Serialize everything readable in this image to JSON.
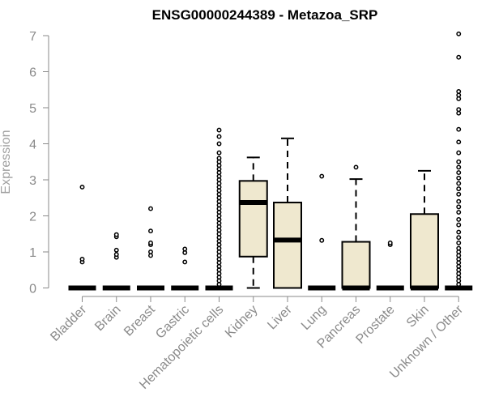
{
  "chart_data": {
    "type": "boxplot",
    "title": "ENSG00000244389 - Metazoa_SRP",
    "xlabel": "",
    "ylabel": "Expression",
    "ylim": [
      0,
      7
    ],
    "yticks": [
      0,
      1,
      2,
      3,
      4,
      5,
      6,
      7
    ],
    "box_color": "#efe8cf",
    "categories": [
      "Bladder",
      "Brain",
      "Breast",
      "Gastric",
      "Hematopoietic cells",
      "Kidney",
      "Liver",
      "Lung",
      "Pancreas",
      "Prostate",
      "Skin",
      "Unknown / Other"
    ],
    "boxes": [
      {
        "category": "Bladder",
        "min": 0,
        "q1": 0,
        "median": 0,
        "q3": 0,
        "max": 0,
        "outliers": [
          0.72,
          0.8,
          2.8
        ]
      },
      {
        "category": "Brain",
        "min": 0,
        "q1": 0,
        "median": 0,
        "q3": 0,
        "max": 0,
        "outliers": [
          0.85,
          0.93,
          1.05,
          1.42,
          1.48
        ]
      },
      {
        "category": "Breast",
        "min": 0,
        "q1": 0,
        "median": 0,
        "q3": 0,
        "max": 0,
        "outliers": [
          0.9,
          1.0,
          1.2,
          1.25,
          1.58,
          2.2
        ]
      },
      {
        "category": "Gastric",
        "min": 0,
        "q1": 0,
        "median": 0,
        "q3": 0,
        "max": 0,
        "outliers": [
          0.72,
          0.98,
          1.08
        ]
      },
      {
        "category": "Hematopoietic cells",
        "min": 0,
        "q1": 0,
        "median": 0,
        "q3": 0,
        "max": 0,
        "outliers": [
          0.1,
          0.2,
          0.3,
          0.4,
          0.5,
          0.6,
          0.7,
          0.8,
          0.9,
          1.0,
          1.1,
          1.2,
          1.3,
          1.4,
          1.5,
          1.6,
          1.7,
          1.8,
          1.9,
          2.0,
          2.1,
          2.2,
          2.3,
          2.4,
          2.5,
          2.6,
          2.7,
          2.8,
          2.9,
          3.0,
          3.1,
          3.2,
          3.3,
          3.4,
          3.5,
          3.6,
          3.75,
          4.0,
          4.2,
          4.38
        ]
      },
      {
        "category": "Kidney",
        "min": 0,
        "q1": 0.87,
        "median": 2.37,
        "q3": 2.97,
        "max": 3.62,
        "outliers": []
      },
      {
        "category": "Liver",
        "min": 0,
        "q1": 0,
        "median": 1.33,
        "q3": 2.37,
        "max": 4.15,
        "outliers": []
      },
      {
        "category": "Lung",
        "min": 0,
        "q1": 0,
        "median": 0,
        "q3": 0,
        "max": 0,
        "outliers": [
          1.32,
          3.1
        ]
      },
      {
        "category": "Pancreas",
        "min": 0,
        "q1": 0,
        "median": 0,
        "q3": 1.28,
        "max": 3.02,
        "outliers": [
          3.35
        ]
      },
      {
        "category": "Prostate",
        "min": 0,
        "q1": 0,
        "median": 0,
        "q3": 0,
        "max": 0,
        "outliers": [
          1.2,
          1.25
        ]
      },
      {
        "category": "Skin",
        "min": 0,
        "q1": 0,
        "median": 0,
        "q3": 2.05,
        "max": 3.25,
        "outliers": []
      },
      {
        "category": "Unknown / Other",
        "min": 0,
        "q1": 0,
        "median": 0,
        "q3": 0,
        "max": 0,
        "outliers": [
          0.1,
          0.2,
          0.3,
          0.4,
          0.5,
          0.6,
          0.7,
          0.8,
          0.9,
          1.0,
          1.1,
          1.25,
          1.4,
          1.55,
          1.75,
          1.9,
          2.1,
          2.25,
          2.4,
          2.6,
          2.75,
          2.9,
          3.05,
          3.2,
          3.35,
          3.5,
          3.75,
          4.05,
          4.4,
          4.85,
          4.95,
          5.25,
          5.35,
          5.45,
          6.4,
          7.05
        ]
      }
    ]
  }
}
